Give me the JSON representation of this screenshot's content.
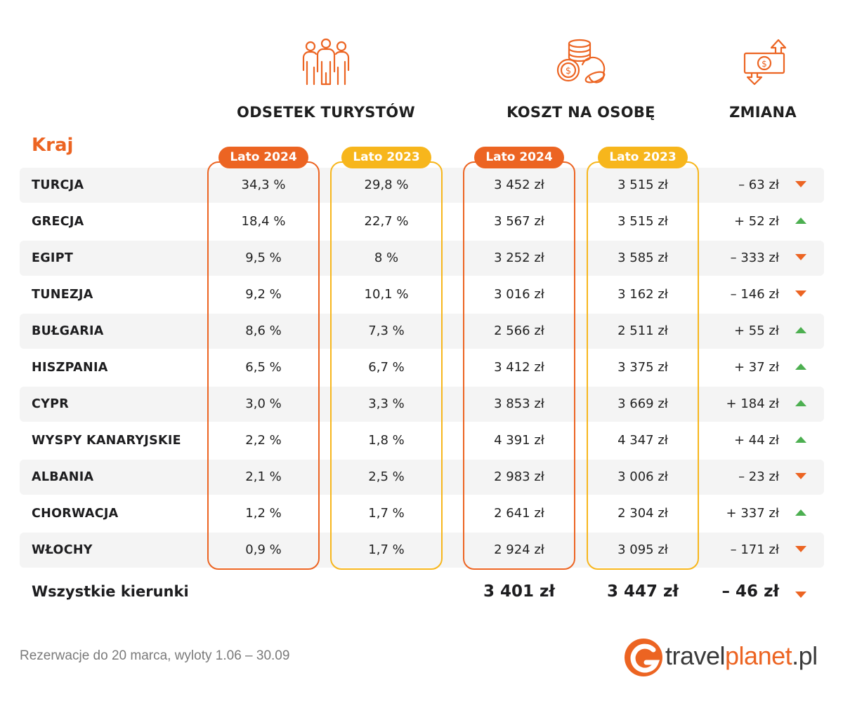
{
  "headers": {
    "share": "ODSETEK TURYSTÓW",
    "cost": "KOSZT NA OSOBĘ",
    "change": "ZMIANA",
    "country": "Kraj",
    "pill_2024": "Lato 2024",
    "pill_2023": "Lato 2023"
  },
  "icons": {
    "share": "people-icon",
    "cost": "coins-icon",
    "change": "money-arrows-icon"
  },
  "colors": {
    "accent": "#ec6422",
    "secondary": "#f7b61c",
    "up": "#4caf50",
    "down": "#ec6422"
  },
  "chart_data": {
    "type": "table",
    "columns": [
      "Kraj",
      "Odsetek turystów Lato 2024",
      "Odsetek turystów Lato 2023",
      "Koszt na osobę Lato 2024",
      "Koszt na osobę Lato 2023",
      "Zmiana"
    ],
    "rows": [
      {
        "country": "TURCJA",
        "share2024": "34,3 %",
        "share2023": "29,8 %",
        "cost2024": "3 452 zł",
        "cost2023": "3 515 zł",
        "change": "– 63 zł",
        "dir": "down"
      },
      {
        "country": "GRECJA",
        "share2024": "18,4 %",
        "share2023": "22,7 %",
        "cost2024": "3 567 zł",
        "cost2023": "3 515 zł",
        "change": "+ 52 zł",
        "dir": "up"
      },
      {
        "country": "EGIPT",
        "share2024": "9,5 %",
        "share2023": "8 %",
        "cost2024": "3 252 zł",
        "cost2023": "3 585 zł",
        "change": "– 333 zł",
        "dir": "down"
      },
      {
        "country": "TUNEZJA",
        "share2024": "9,2 %",
        "share2023": "10,1 %",
        "cost2024": "3 016 zł",
        "cost2023": "3 162 zł",
        "change": "– 146 zł",
        "dir": "down"
      },
      {
        "country": "BUŁGARIA",
        "share2024": "8,6 %",
        "share2023": "7,3 %",
        "cost2024": "2 566 zł",
        "cost2023": "2 511 zł",
        "change": "+ 55 zł",
        "dir": "up"
      },
      {
        "country": "HISZPANIA",
        "share2024": "6,5 %",
        "share2023": "6,7 %",
        "cost2024": "3 412 zł",
        "cost2023": "3 375 zł",
        "change": "+ 37 zł",
        "dir": "up"
      },
      {
        "country": "CYPR",
        "share2024": "3,0 %",
        "share2023": "3,3 %",
        "cost2024": "3 853 zł",
        "cost2023": "3 669 zł",
        "change": "+ 184 zł",
        "dir": "up"
      },
      {
        "country": "WYSPY KANARYJSKIE",
        "share2024": "2,2 %",
        "share2023": "1,8 %",
        "cost2024": "4 391 zł",
        "cost2023": "4 347 zł",
        "change": "+ 44 zł",
        "dir": "up"
      },
      {
        "country": "ALBANIA",
        "share2024": "2,1 %",
        "share2023": "2,5 %",
        "cost2024": "2 983 zł",
        "cost2023": "3 006 zł",
        "change": "– 23 zł",
        "dir": "down"
      },
      {
        "country": "CHORWACJA",
        "share2024": "1,2 %",
        "share2023": "1,7 %",
        "cost2024": "2 641 zł",
        "cost2023": "2 304 zł",
        "change": "+ 337 zł",
        "dir": "up"
      },
      {
        "country": "WŁOCHY",
        "share2024": "0,9 %",
        "share2023": "1,7 %",
        "cost2024": "2 924 zł",
        "cost2023": "3 095 zł",
        "change": "– 171 zł",
        "dir": "down"
      }
    ],
    "total": {
      "label": "Wszystkie kierunki",
      "cost2024": "3 401 zł",
      "cost2023": "3 447 zł",
      "change": "– 46 zł",
      "dir": "down"
    }
  },
  "footer": {
    "note": "Rezerwacje do 20 marca, wyloty 1.06 – 30.09",
    "logo_part1": "travel",
    "logo_part2": "planet",
    "logo_part3": ".pl"
  }
}
